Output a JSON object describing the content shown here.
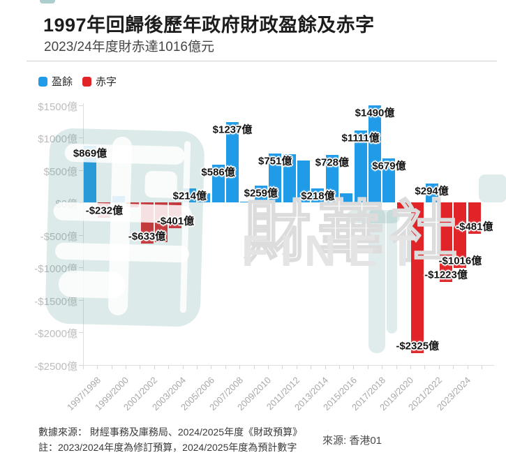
{
  "header": {
    "title": "1997年回歸後歷年政府財政盈餘及赤字",
    "subtitle": "2023/24年度財赤達1016億元"
  },
  "legend": [
    {
      "label": "盈餘",
      "color": "#1F9BE8"
    },
    {
      "label": "赤字",
      "color": "#E02428"
    }
  ],
  "chart_data": {
    "type": "bar",
    "title": "1997年回歸後歷年政府財政盈餘及赤字",
    "subtitle": "2023/24年度財赤達1016億元",
    "unit": "億元",
    "categories": [
      "1997/1998",
      "1998/1999",
      "1999/2000",
      "2000/2001",
      "2001/2002",
      "2002/2003",
      "2003/2004",
      "2004/2005",
      "2005/2006",
      "2006/2007",
      "2007/2008",
      "2008/2009",
      "2009/2010",
      "2010/2011",
      "2011/2012",
      "2012/2013",
      "2013/2014",
      "2014/2015",
      "2015/2016",
      "2016/2017",
      "2017/2018",
      "2018/2019",
      "2019/2020",
      "2020/2021",
      "2021/2022",
      "2022/2023",
      "2023/2024",
      "2024/2025"
    ],
    "values": [
      869,
      -232,
      100,
      -78,
      -633,
      -617,
      -401,
      214,
      140,
      586,
      1237,
      14,
      259,
      751,
      737,
      648,
      218,
      728,
      144,
      1111,
      1490,
      679,
      -106,
      -2325,
      294,
      -1223,
      -1016,
      -481
    ],
    "bar_labels": [
      "$869億",
      "-$232億",
      null,
      null,
      "-$633億",
      null,
      "-$401億",
      "$214億",
      null,
      "$586億",
      "$1237億",
      null,
      "$259億",
      "$751億",
      null,
      null,
      "$218億",
      "$728億",
      null,
      "$1111億",
      "$1490億",
      "$679億",
      null,
      "-$2325億",
      "$294億",
      "-$1223億",
      "-$1016億",
      "-$481億"
    ],
    "colors": {
      "surplus": "#1F9BE8",
      "deficit": "#E02428"
    },
    "y_ticks": [
      {
        "label": "$1500億",
        "value": 1500
      },
      {
        "label": "$1000億",
        "value": 1000
      },
      {
        "label": "$500億",
        "value": 500
      },
      {
        "label": "$0億",
        "value": 0
      },
      {
        "label": "-$500億",
        "value": -500
      },
      {
        "label": "-$1000億",
        "value": -1000
      },
      {
        "label": "-$1500億",
        "value": -1500
      },
      {
        "label": "-$2000億",
        "value": -2000
      },
      {
        "label": "-$2500億",
        "value": -2500
      }
    ],
    "x_tick_labels": [
      "1997/1998",
      "1999/2000",
      "2001/2002",
      "2003/2004",
      "2005/2006",
      "2007/2008",
      "2009/2010",
      "2011/2012",
      "2013/2014",
      "2015/2016",
      "2017/2018",
      "2019/2020",
      "2021/2022",
      "2023/2024"
    ],
    "ylim": [
      -2500,
      1500
    ],
    "grid": false,
    "legend_position": "top-left"
  },
  "watermark": {
    "seal_text": "財華社",
    "brand_text": "FINET"
  },
  "footer": {
    "line1": "數據來源： 財經事務及庫務局、2024/2025年度《財政預算》",
    "line2": "註：2023/2024年度為修訂預算，2024/2025年度為預計數字",
    "source_right": "來源: 香港01"
  }
}
